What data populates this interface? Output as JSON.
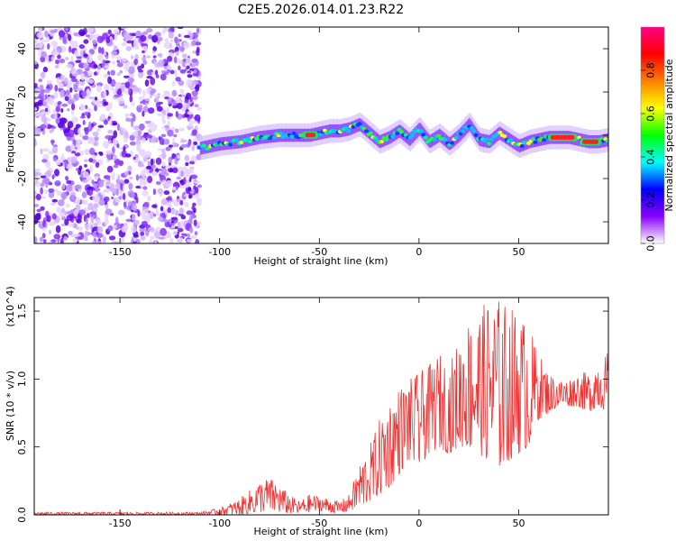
{
  "title": "C2E5.2026.014.01.23.R22",
  "chart_data": [
    {
      "type": "heatmap",
      "name": "spectrogram",
      "xlabel": "Height of straight line (km)",
      "ylabel": "Frequency (Hz)",
      "xlim": [
        -193,
        95
      ],
      "ylim": [
        -50,
        50
      ],
      "xticks": [
        -150,
        -100,
        -50,
        0,
        50
      ],
      "yticks": [
        -40,
        -20,
        0,
        20,
        40
      ],
      "colorbar": {
        "label": "Normalized spectral amplitude",
        "range": [
          0,
          1
        ],
        "ticks": [
          "0.0",
          "0.2",
          "0.4",
          "0.6",
          "0.8"
        ],
        "colors": [
          "#ffffff",
          "#8800ff",
          "#0000ff",
          "#00ffff",
          "#00ff00",
          "#ffff00",
          "#ff7f00",
          "#ff0000",
          "#ff0088"
        ]
      },
      "noise_region_x": [
        -193,
        -110
      ],
      "ridge": {
        "x": [
          -110,
          -100,
          -90,
          -80,
          -70,
          -60,
          -55,
          -50,
          -45,
          -40,
          -35,
          -30,
          -25,
          -20,
          -15,
          -10,
          -5,
          0,
          5,
          10,
          15,
          20,
          25,
          30,
          35,
          40,
          45,
          50,
          55,
          60,
          65,
          70,
          75,
          80,
          85,
          90,
          95
        ],
        "y": [
          -6,
          -4,
          -3,
          -1,
          0,
          0,
          0,
          1,
          2,
          2,
          3,
          5,
          1,
          -3,
          -1,
          2,
          -2,
          3,
          -3,
          0,
          -4,
          0,
          5,
          -2,
          -3,
          1,
          -2,
          -5,
          -3,
          -2,
          -1,
          -1,
          -1,
          -2,
          -3,
          -3,
          -2
        ]
      }
    },
    {
      "type": "line",
      "name": "snr",
      "xlabel": "Height of straight line (km)",
      "ylabel": "SNR (10 * v/v)",
      "y_multiplier": "(x10^4)",
      "xlim": [
        -193,
        95
      ],
      "ylim": [
        0,
        1.6
      ],
      "xticks": [
        -150,
        -100,
        -50,
        0,
        50
      ],
      "yticks": [
        "0.0",
        "0.5",
        "1.0",
        "1.5"
      ],
      "color": "#ee3333",
      "envelope": {
        "x": [
          -193,
          -150,
          -110,
          -100,
          -90,
          -80,
          -75,
          -70,
          -65,
          -60,
          -55,
          -50,
          -45,
          -40,
          -35,
          -30,
          -25,
          -20,
          -15,
          -10,
          -5,
          0,
          5,
          10,
          15,
          20,
          25,
          30,
          35,
          40,
          45,
          50,
          55,
          60,
          65,
          70,
          75,
          80,
          85,
          90,
          95
        ],
        "low": [
          0.0,
          0.0,
          0.0,
          0.0,
          0.0,
          0.02,
          0.03,
          0.02,
          0.01,
          0.01,
          0.02,
          0.03,
          0.02,
          0.01,
          0.03,
          0.05,
          0.1,
          0.15,
          0.2,
          0.3,
          0.4,
          0.35,
          0.45,
          0.5,
          0.45,
          0.5,
          0.5,
          0.45,
          0.4,
          0.35,
          0.4,
          0.45,
          0.5,
          0.7,
          0.75,
          0.8,
          0.8,
          0.8,
          0.75,
          0.8,
          0.75
        ],
        "high": [
          0.02,
          0.02,
          0.02,
          0.05,
          0.12,
          0.25,
          0.28,
          0.22,
          0.15,
          0.1,
          0.15,
          0.14,
          0.12,
          0.1,
          0.15,
          0.38,
          0.5,
          0.7,
          0.85,
          0.95,
          1.0,
          1.05,
          1.1,
          1.2,
          1.1,
          1.3,
          1.45,
          1.5,
          1.6,
          1.6,
          1.55,
          1.5,
          1.4,
          1.2,
          1.05,
          1.0,
          1.0,
          1.05,
          1.05,
          1.15,
          1.2
        ]
      }
    }
  ]
}
